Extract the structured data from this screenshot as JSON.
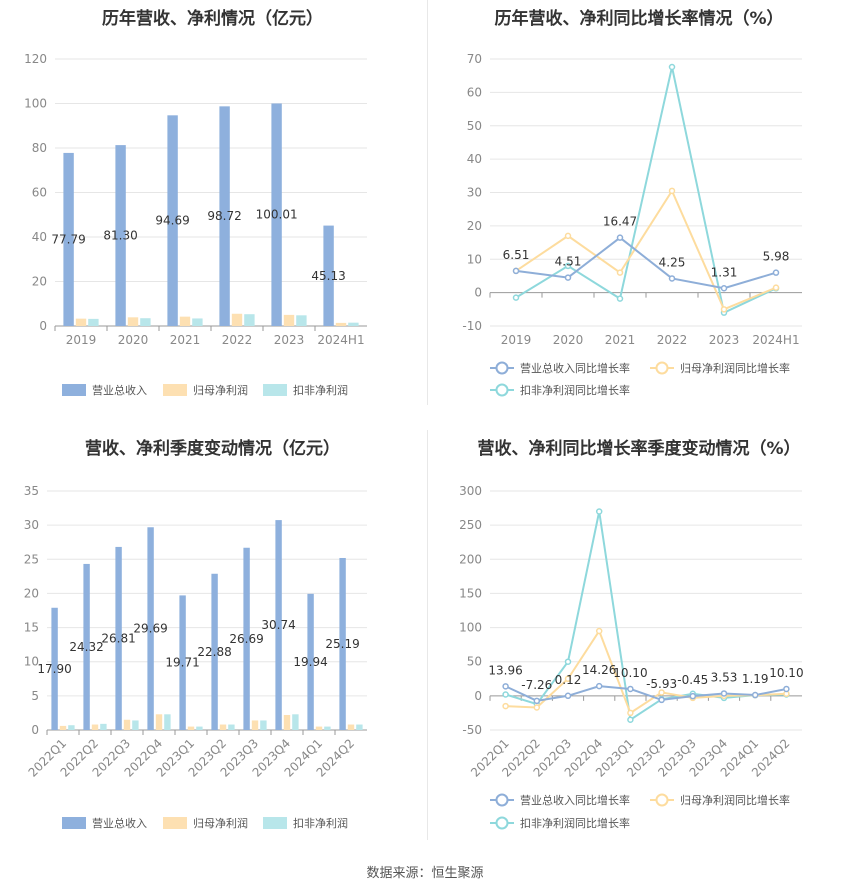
{
  "source": "数据来源：恒生聚源",
  "colors": {
    "revenue": "#8eb0dd",
    "net": "#fde0b2",
    "deducted": "#b8e6ea",
    "revenue_line": "#8eaed8",
    "net_line": "#fddc9e",
    "deducted_line": "#8ed8dc"
  },
  "chart_data": [
    {
      "type": "bar",
      "title": "历年营收、净利情况（亿元）",
      "categories": [
        "2019",
        "2020",
        "2021",
        "2022",
        "2023",
        "2024H1"
      ],
      "ylim": [
        0,
        120
      ],
      "yticks": [
        "0",
        "20",
        "40",
        "60",
        "80",
        "100",
        "120"
      ],
      "series": [
        {
          "name": "营业总收入",
          "values": [
            77.79,
            81.3,
            94.69,
            98.72,
            100.01,
            45.13
          ],
          "labels": [
            "77.79",
            "81.30",
            "94.69",
            "98.72",
            "100.01",
            "45.13"
          ]
        },
        {
          "name": "归母净利润",
          "values": [
            3.3,
            3.9,
            4.2,
            5.5,
            5.0,
            1.4
          ]
        },
        {
          "name": "扣非净利润",
          "values": [
            3.2,
            3.5,
            3.4,
            5.3,
            4.8,
            1.5
          ]
        }
      ],
      "legend": "bottom"
    },
    {
      "type": "line",
      "title": "历年营收、净利同比增长率情况（%）",
      "categories": [
        "2019",
        "2020",
        "2021",
        "2022",
        "2023",
        "2024H1"
      ],
      "ylim": [
        -10,
        70
      ],
      "yticks": [
        "-10",
        "0",
        "10",
        "20",
        "30",
        "40",
        "50",
        "60",
        "70"
      ],
      "series": [
        {
          "name": "营业总收入同比增长率",
          "values": [
            6.51,
            4.51,
            16.47,
            4.25,
            1.31,
            5.98
          ],
          "labels": [
            "6.51",
            "4.51",
            "16.47",
            "4.25",
            "1.31",
            "5.98"
          ]
        },
        {
          "name": "归母净利润同比增长率",
          "values": [
            6.5,
            17.0,
            6.0,
            30.5,
            -5.0,
            1.5
          ]
        },
        {
          "name": "扣非净利润同比增长率",
          "values": [
            -1.5,
            8.0,
            -1.8,
            67.6,
            -6.0,
            1.3
          ]
        }
      ],
      "legend": "bottom"
    },
    {
      "type": "bar",
      "title": "营收、净利季度变动情况（亿元）",
      "categories": [
        "2022Q1",
        "2022Q2",
        "2022Q3",
        "2022Q4",
        "2023Q1",
        "2023Q2",
        "2023Q3",
        "2023Q4",
        "2024Q1",
        "2024Q2"
      ],
      "ylim": [
        0,
        35
      ],
      "yticks": [
        "0",
        "5",
        "10",
        "15",
        "20",
        "25",
        "30",
        "35"
      ],
      "series": [
        {
          "name": "营业总收入",
          "values": [
            17.9,
            24.32,
            26.81,
            29.69,
            19.71,
            22.88,
            26.69,
            30.74,
            19.94,
            25.19
          ],
          "labels": [
            "17.90",
            "24.32",
            "26.81",
            "29.69",
            "19.71",
            "22.88",
            "26.69",
            "30.74",
            "19.94",
            "25.19"
          ]
        },
        {
          "name": "归母净利润",
          "values": [
            0.6,
            0.8,
            1.5,
            2.3,
            0.5,
            0.8,
            1.4,
            2.2,
            0.5,
            0.8
          ]
        },
        {
          "name": "扣非净利润",
          "values": [
            0.7,
            0.9,
            1.4,
            2.3,
            0.5,
            0.8,
            1.4,
            2.3,
            0.5,
            0.8
          ]
        }
      ],
      "legend": "bottom"
    },
    {
      "type": "line",
      "title": "营收、净利同比增长率季度变动情况（%）",
      "categories": [
        "2022Q1",
        "2022Q2",
        "2022Q3",
        "2022Q4",
        "2023Q1",
        "2023Q2",
        "2023Q3",
        "2023Q4",
        "2024Q1",
        "2024Q2"
      ],
      "ylim": [
        -50,
        300
      ],
      "yticks": [
        "-50",
        "0",
        "50",
        "100",
        "150",
        "200",
        "250",
        "300"
      ],
      "series": [
        {
          "name": "营业总收入同比增长率",
          "values": [
            13.96,
            -7.26,
            0.12,
            14.26,
            10.1,
            -5.93,
            -0.45,
            3.53,
            1.19,
            10.1
          ],
          "labels": [
            "13.96",
            "-7.26",
            "0.12",
            "14.26",
            "10.10",
            "-5.93",
            "-0.45",
            "3.53",
            "1.19",
            "10.10"
          ]
        },
        {
          "name": "归母净利润同比增长率",
          "values": [
            -15,
            -17,
            25,
            95,
            -25,
            5,
            -3,
            0,
            1,
            3
          ]
        },
        {
          "name": "扣非净利润同比增长率",
          "values": [
            2,
            -12,
            50,
            270,
            -35,
            -5,
            3,
            -3,
            1,
            2
          ]
        }
      ],
      "legend": "bottom"
    }
  ]
}
